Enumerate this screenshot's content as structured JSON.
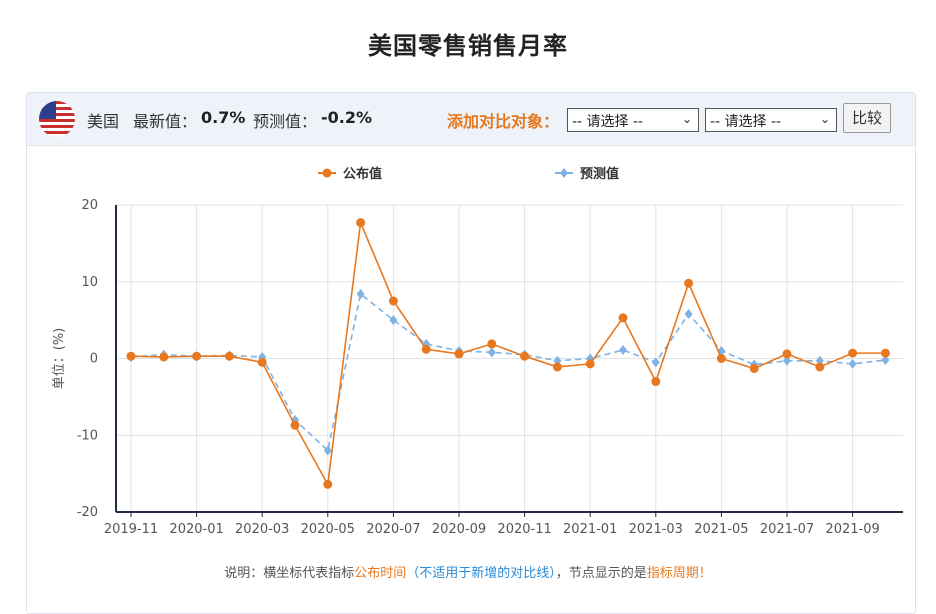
{
  "page_title": "美国零售销售月率",
  "toolbar": {
    "country": "美国",
    "latest_label": "最新值：",
    "latest_value": "0.7%",
    "forecast_label": "预测值：",
    "forecast_value": "-0.2%",
    "compare_label": "添加对比对象：",
    "select1": "-- 请选择 --",
    "select2": "-- 请选择 --",
    "compare_button": "比较"
  },
  "note": {
    "part1": "说明：横坐标代表指标",
    "part2": "公布时间",
    "part3": "（不适用于新增的对比线）",
    "part4": "，节点显示的是",
    "part5": "指标周期！"
  },
  "colors": {
    "published": "#e8781f",
    "forecast": "#7fb2e5",
    "accent": "#e8781f"
  },
  "chart_data": {
    "type": "line",
    "ylabel": "单位：(%)",
    "ylim": [
      -20,
      20
    ],
    "yticks": [
      20,
      10,
      0,
      -10,
      -20
    ],
    "x": [
      "2019-11",
      "2019-12",
      "2020-01",
      "2020-02",
      "2020-03",
      "2020-04",
      "2020-05",
      "2020-06",
      "2020-07",
      "2020-08",
      "2020-09",
      "2020-10",
      "2020-11",
      "2020-12",
      "2021-01",
      "2021-02",
      "2021-03",
      "2021-04",
      "2021-05",
      "2021-06",
      "2021-07",
      "2021-08",
      "2021-09",
      "2021-10"
    ],
    "xtick_labels": [
      "2019-11",
      "2020-01",
      "2020-03",
      "2020-05",
      "2020-07",
      "2020-09",
      "2020-11",
      "2021-01",
      "2021-03",
      "2021-05",
      "2021-07",
      "2021-09"
    ],
    "series": [
      {
        "name": "公布值",
        "values": [
          0.3,
          0.2,
          0.3,
          0.3,
          -0.5,
          -8.7,
          -16.4,
          17.7,
          7.5,
          1.2,
          0.6,
          1.9,
          0.3,
          -1.1,
          -0.7,
          5.3,
          -3.0,
          9.8,
          0.0,
          -1.3,
          0.6,
          -1.1,
          0.7,
          0.7
        ]
      },
      {
        "name": "预测值",
        "values": [
          0.2,
          0.5,
          0.3,
          0.4,
          0.2,
          -8.0,
          -12.0,
          8.4,
          5.0,
          1.9,
          1.0,
          0.8,
          0.5,
          -0.3,
          0.0,
          1.1,
          -0.5,
          5.8,
          1.0,
          -0.8,
          -0.3,
          -0.3,
          -0.7,
          -0.2
        ]
      }
    ]
  }
}
